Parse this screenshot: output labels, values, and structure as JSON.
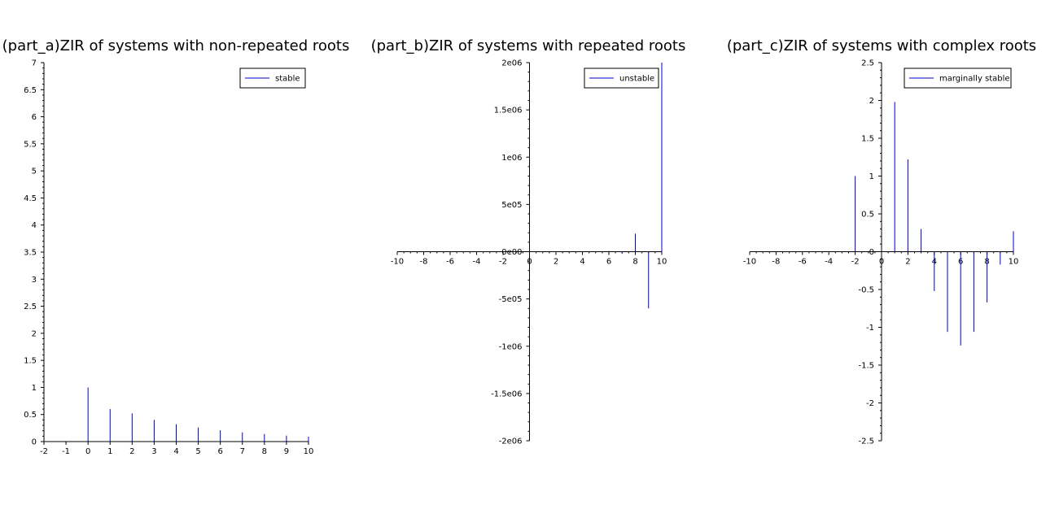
{
  "colors": {
    "stem": "#0000cc",
    "axis": "#000000",
    "background": "#ffffff"
  },
  "chart_data": [
    {
      "type": "stem",
      "title": "(part_a)ZIR of systems with non-repeated roots",
      "xlabel": "",
      "ylabel": "",
      "xlim": [
        -2,
        10
      ],
      "ylim": [
        0,
        7
      ],
      "legend": {
        "entries": [
          "stable"
        ],
        "placement": "top-right"
      },
      "x": [
        -2,
        -1,
        0,
        1,
        2,
        3,
        4,
        5,
        6,
        7,
        8,
        9,
        10
      ],
      "values": [
        0,
        0,
        1.0,
        0.6,
        0.52,
        0.4,
        0.32,
        0.26,
        0.21,
        0.17,
        0.14,
        0.11,
        0.09
      ],
      "xticks": [
        "-2",
        "-1",
        "0",
        "1",
        "2",
        "3",
        "4",
        "5",
        "6",
        "7",
        "8",
        "9",
        "10"
      ],
      "yticks": [
        "0",
        "0.5",
        "1",
        "1.5",
        "2",
        "2.5",
        "3",
        "3.5",
        "4",
        "4.5",
        "5",
        "5.5",
        "6",
        "6.5",
        "7"
      ]
    },
    {
      "type": "stem",
      "title": "(part_b)ZIR of systems with repeated roots",
      "xlabel": "",
      "ylabel": "",
      "xlim": [
        -10,
        10
      ],
      "ylim": [
        -2000000,
        2000000
      ],
      "legend": {
        "entries": [
          "unstable"
        ],
        "placement": "top-right"
      },
      "x": [
        -10,
        -9,
        -8,
        -7,
        -6,
        -5,
        -4,
        -3,
        -2,
        -1,
        0,
        1,
        2,
        3,
        4,
        5,
        6,
        7,
        8,
        9,
        10
      ],
      "values": [
        0,
        0,
        0,
        0,
        0,
        0,
        0,
        0,
        0,
        0,
        0,
        0,
        0,
        0,
        0,
        0,
        8000,
        -20000,
        190000,
        -600000,
        2000000
      ],
      "xticks": [
        "-10",
        "-8",
        "-6",
        "-4",
        "-2",
        "0",
        "2",
        "4",
        "6",
        "8",
        "10"
      ],
      "yticks": [
        "-2e06",
        "-1.5e06",
        "-1e06",
        "-5e05",
        "0e00",
        "5e05",
        "1e06",
        "1.5e06",
        "2e06"
      ]
    },
    {
      "type": "stem",
      "title": "(part_c)ZIR of systems with complex roots",
      "xlabel": "",
      "ylabel": "",
      "xlim": [
        -10,
        10
      ],
      "ylim": [
        -2.5,
        2.5
      ],
      "legend": {
        "entries": [
          "marginally stable"
        ],
        "placement": "top-right"
      },
      "x": [
        -10,
        -9,
        -8,
        -7,
        -6,
        -5,
        -4,
        -3,
        -2,
        -1,
        0,
        1,
        2,
        3,
        4,
        5,
        6,
        7,
        8,
        9,
        10
      ],
      "values": [
        0,
        0,
        0,
        0,
        0,
        0,
        0,
        0,
        1.0,
        0,
        0,
        1.98,
        1.22,
        0.3,
        -0.52,
        -1.06,
        -1.24,
        -1.06,
        -0.67,
        -0.17,
        0.27
      ],
      "xticks": [
        "-10",
        "-8",
        "-6",
        "-4",
        "-2",
        "0",
        "2",
        "4",
        "6",
        "8",
        "10"
      ],
      "yticks": [
        "-2.5",
        "-2",
        "-1.5",
        "-1",
        "-0.5",
        "0",
        "0.5",
        "1",
        "1.5",
        "2",
        "2.5"
      ]
    }
  ]
}
